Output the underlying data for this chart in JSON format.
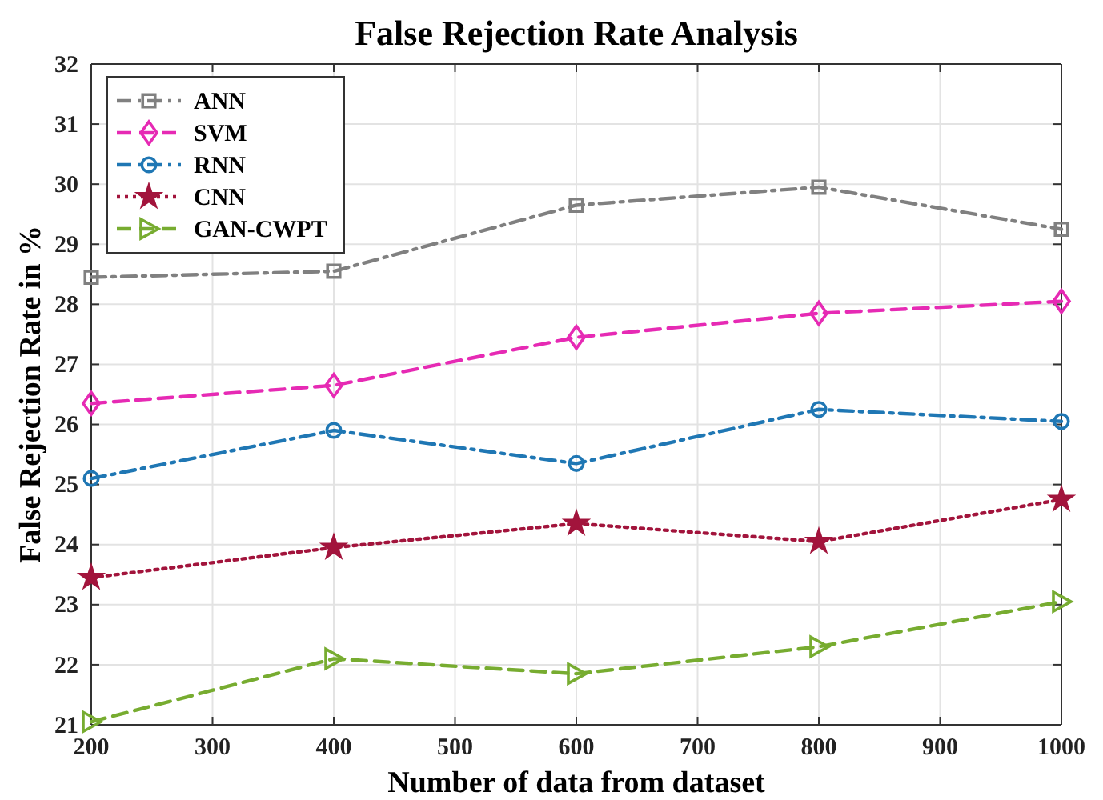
{
  "chart_data": {
    "type": "line",
    "title": "False Rejection Rate Analysis",
    "xlabel": "Number of data from dataset",
    "ylabel": "False Rejection Rate in %",
    "x": [
      200,
      400,
      600,
      800,
      1000
    ],
    "series": [
      {
        "name": "ANN",
        "color": "#808080",
        "marker": "square",
        "line_style": "dashdot",
        "values": [
          28.45,
          28.55,
          29.65,
          29.95,
          29.25
        ]
      },
      {
        "name": "SVM",
        "color": "#e62ab4",
        "marker": "diamond",
        "line_style": "dashed",
        "values": [
          26.35,
          26.65,
          27.45,
          27.85,
          28.05
        ]
      },
      {
        "name": "RNN",
        "color": "#1f77b4",
        "marker": "circle",
        "line_style": "dashdot",
        "values": [
          25.1,
          25.9,
          25.35,
          26.25,
          26.05
        ]
      },
      {
        "name": "CNN",
        "color": "#a2143c",
        "marker": "star",
        "line_style": "dotted",
        "values": [
          23.45,
          23.95,
          24.35,
          24.05,
          24.75
        ]
      },
      {
        "name": "GAN-CWPT",
        "color": "#77ac30",
        "marker": "triangle",
        "line_style": "dashed",
        "values": [
          21.05,
          22.1,
          21.85,
          22.3,
          23.05
        ]
      }
    ],
    "xlim": [
      200,
      1000
    ],
    "xticks": [
      200,
      300,
      400,
      500,
      600,
      700,
      800,
      900,
      1000
    ],
    "ylim": [
      21,
      32
    ],
    "yticks": [
      21,
      22,
      23,
      24,
      25,
      26,
      27,
      28,
      29,
      30,
      31,
      32
    ],
    "grid": true,
    "legend": "top left"
  }
}
